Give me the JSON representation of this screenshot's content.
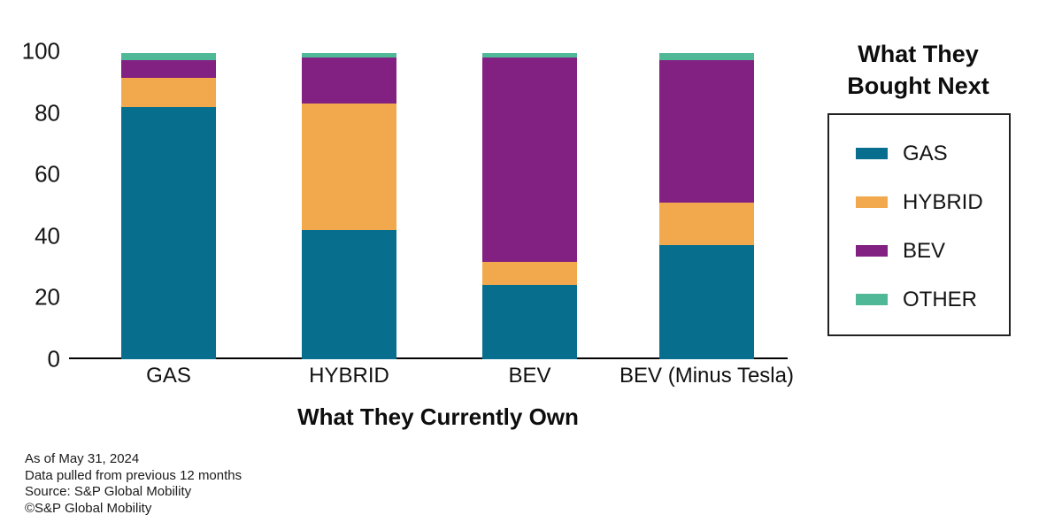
{
  "chart_data": {
    "type": "bar",
    "stacked": true,
    "title": "",
    "xlabel": "What They Currently Own",
    "ylabel": "",
    "legend_title": "What They Bought Next",
    "legend_position": "right",
    "grid": false,
    "ylim": [
      0,
      100
    ],
    "yticks": [
      0,
      20,
      40,
      60,
      80,
      100
    ],
    "categories": [
      "GAS",
      "HYBRID",
      "BEV",
      "BEV (Minus Tesla)"
    ],
    "series": [
      {
        "name": "GAS",
        "color": "#076f8d",
        "values": [
          82,
          42,
          24,
          37
        ]
      },
      {
        "name": "HYBRID",
        "color": "#f2a94e",
        "values": [
          9.5,
          41,
          7.5,
          14
        ]
      },
      {
        "name": "BEV",
        "color": "#822181",
        "values": [
          5.5,
          15,
          66.5,
          46
        ]
      },
      {
        "name": "OTHER",
        "color": "#4fb896",
        "values": [
          2.5,
          1.5,
          1.5,
          2.5
        ]
      }
    ]
  },
  "footer": {
    "lines": [
      "As of May 31, 2024",
      "Data pulled from previous 12 months",
      "Source: S&P Global Mobility",
      "©S&P Global Mobility"
    ]
  }
}
